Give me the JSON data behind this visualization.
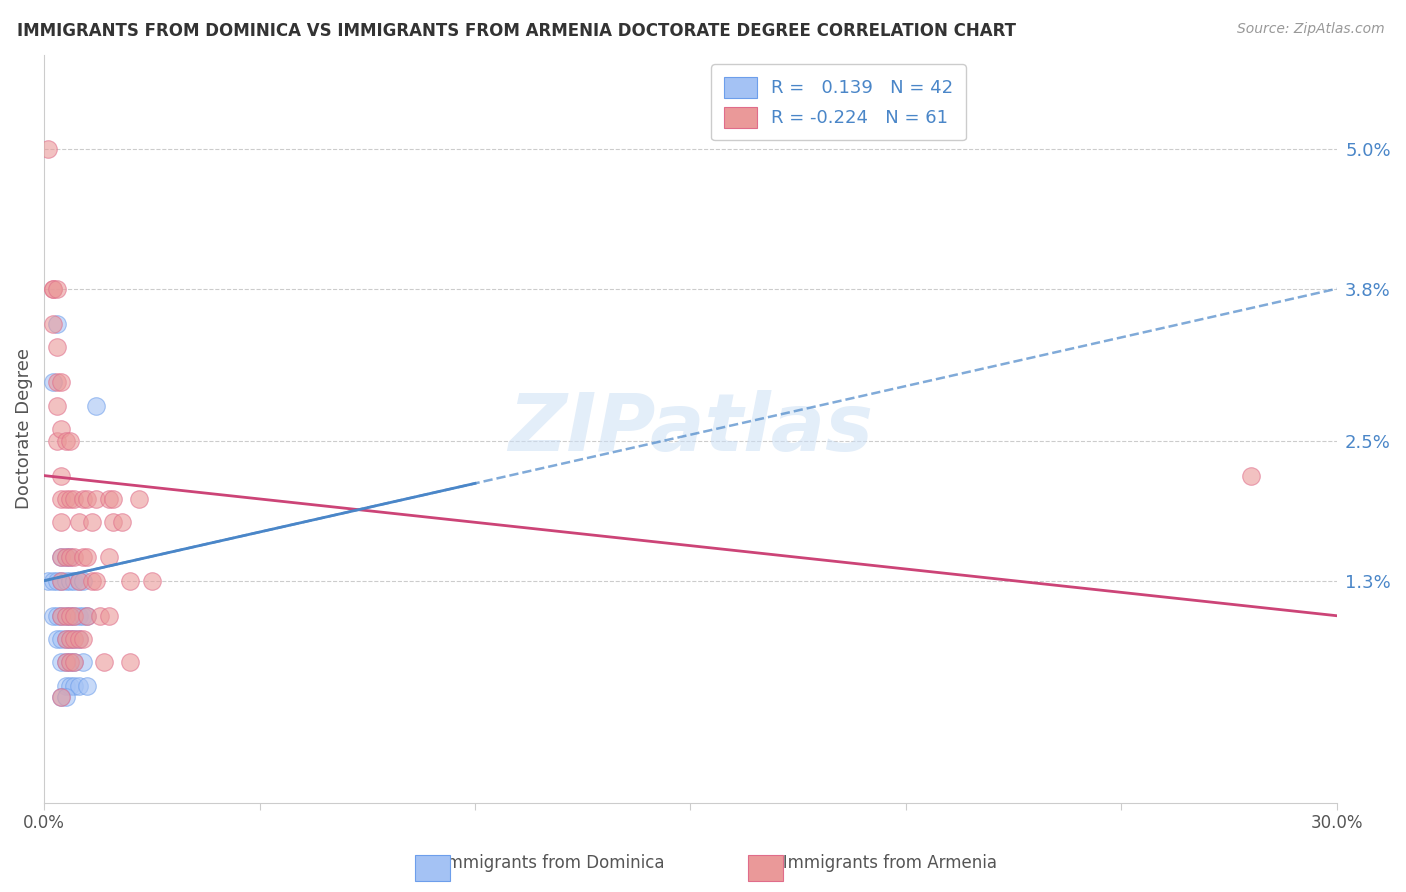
{
  "title": "IMMIGRANTS FROM DOMINICA VS IMMIGRANTS FROM ARMENIA DOCTORATE DEGREE CORRELATION CHART",
  "source": "Source: ZipAtlas.com",
  "ylabel": "Doctorate Degree",
  "ytick_labels": [
    "1.3%",
    "2.5%",
    "3.8%",
    "5.0%"
  ],
  "ytick_values": [
    0.013,
    0.025,
    0.038,
    0.05
  ],
  "xlim": [
    0.0,
    0.3
  ],
  "ylim": [
    -0.006,
    0.058
  ],
  "watermark": "ZIPatlas",
  "blue_color": "#a4c2f4",
  "pink_color": "#ea9999",
  "blue_edge_color": "#6d9eeb",
  "pink_edge_color": "#e06c8a",
  "blue_trend_color": "#4a86c8",
  "pink_trend_color": "#cc4477",
  "blue_trend_x": [
    0.0,
    0.3
  ],
  "blue_trend_y": [
    0.013,
    0.038
  ],
  "pink_trend_x": [
    0.0,
    0.3
  ],
  "pink_trend_y": [
    0.022,
    0.01
  ],
  "grid_color": "#cccccc",
  "background_color": "#ffffff",
  "dominica_points": [
    [
      0.001,
      0.013
    ],
    [
      0.002,
      0.013
    ],
    [
      0.002,
      0.01
    ],
    [
      0.003,
      0.013
    ],
    [
      0.003,
      0.01
    ],
    [
      0.003,
      0.008
    ],
    [
      0.004,
      0.015
    ],
    [
      0.004,
      0.013
    ],
    [
      0.004,
      0.01
    ],
    [
      0.004,
      0.008
    ],
    [
      0.004,
      0.006
    ],
    [
      0.005,
      0.015
    ],
    [
      0.005,
      0.013
    ],
    [
      0.005,
      0.01
    ],
    [
      0.005,
      0.008
    ],
    [
      0.005,
      0.006
    ],
    [
      0.005,
      0.004
    ],
    [
      0.006,
      0.015
    ],
    [
      0.006,
      0.013
    ],
    [
      0.006,
      0.01
    ],
    [
      0.006,
      0.008
    ],
    [
      0.006,
      0.006
    ],
    [
      0.006,
      0.004
    ],
    [
      0.007,
      0.013
    ],
    [
      0.007,
      0.01
    ],
    [
      0.007,
      0.008
    ],
    [
      0.007,
      0.006
    ],
    [
      0.007,
      0.004
    ],
    [
      0.008,
      0.013
    ],
    [
      0.008,
      0.01
    ],
    [
      0.008,
      0.008
    ],
    [
      0.008,
      0.004
    ],
    [
      0.009,
      0.013
    ],
    [
      0.009,
      0.01
    ],
    [
      0.009,
      0.006
    ],
    [
      0.01,
      0.01
    ],
    [
      0.01,
      0.004
    ],
    [
      0.002,
      0.03
    ],
    [
      0.003,
      0.035
    ],
    [
      0.012,
      0.028
    ],
    [
      0.004,
      0.003
    ],
    [
      0.005,
      0.003
    ]
  ],
  "armenia_points": [
    [
      0.001,
      0.05
    ],
    [
      0.002,
      0.038
    ],
    [
      0.002,
      0.035
    ],
    [
      0.002,
      0.038
    ],
    [
      0.003,
      0.038
    ],
    [
      0.003,
      0.033
    ],
    [
      0.003,
      0.03
    ],
    [
      0.003,
      0.028
    ],
    [
      0.003,
      0.025
    ],
    [
      0.004,
      0.03
    ],
    [
      0.004,
      0.026
    ],
    [
      0.004,
      0.022
    ],
    [
      0.004,
      0.02
    ],
    [
      0.004,
      0.018
    ],
    [
      0.004,
      0.015
    ],
    [
      0.004,
      0.013
    ],
    [
      0.004,
      0.01
    ],
    [
      0.005,
      0.025
    ],
    [
      0.005,
      0.02
    ],
    [
      0.005,
      0.015
    ],
    [
      0.005,
      0.01
    ],
    [
      0.005,
      0.008
    ],
    [
      0.005,
      0.006
    ],
    [
      0.006,
      0.025
    ],
    [
      0.006,
      0.02
    ],
    [
      0.006,
      0.015
    ],
    [
      0.006,
      0.01
    ],
    [
      0.006,
      0.008
    ],
    [
      0.006,
      0.006
    ],
    [
      0.007,
      0.02
    ],
    [
      0.007,
      0.015
    ],
    [
      0.007,
      0.01
    ],
    [
      0.007,
      0.008
    ],
    [
      0.007,
      0.006
    ],
    [
      0.008,
      0.018
    ],
    [
      0.008,
      0.013
    ],
    [
      0.008,
      0.008
    ],
    [
      0.009,
      0.02
    ],
    [
      0.009,
      0.015
    ],
    [
      0.009,
      0.008
    ],
    [
      0.01,
      0.02
    ],
    [
      0.01,
      0.015
    ],
    [
      0.01,
      0.01
    ],
    [
      0.011,
      0.018
    ],
    [
      0.011,
      0.013
    ],
    [
      0.012,
      0.02
    ],
    [
      0.012,
      0.013
    ],
    [
      0.013,
      0.01
    ],
    [
      0.014,
      0.006
    ],
    [
      0.015,
      0.02
    ],
    [
      0.015,
      0.015
    ],
    [
      0.015,
      0.01
    ],
    [
      0.016,
      0.02
    ],
    [
      0.016,
      0.018
    ],
    [
      0.018,
      0.018
    ],
    [
      0.02,
      0.013
    ],
    [
      0.02,
      0.006
    ],
    [
      0.022,
      0.02
    ],
    [
      0.025,
      0.013
    ],
    [
      0.28,
      0.022
    ],
    [
      0.004,
      0.003
    ]
  ]
}
